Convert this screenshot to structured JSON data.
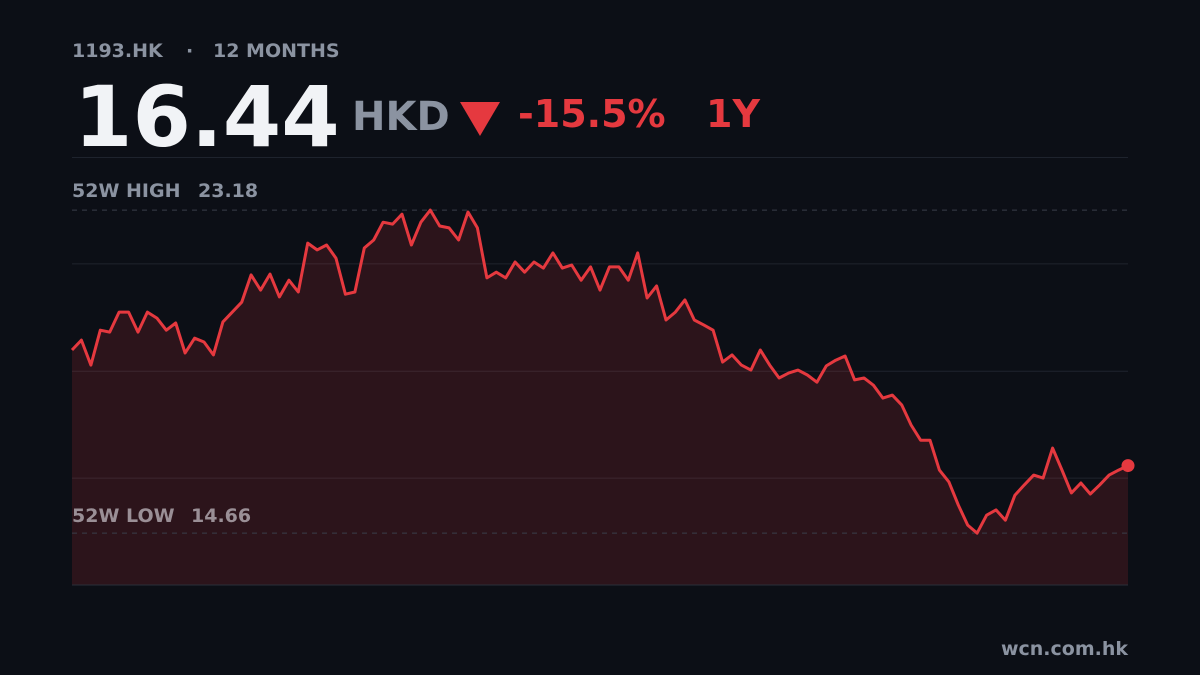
{
  "chart_data": {
    "type": "line",
    "ticker": "1193.HK",
    "period": "12 MONTHS",
    "price": 16.44,
    "currency": "HKD",
    "change": {
      "value": -15.5,
      "label": "-15.5%"
    },
    "range": "1Y",
    "high": {
      "label": "52W HIGH",
      "value": 23.18
    },
    "low": {
      "label": "52W LOW",
      "value": 14.66
    },
    "source": "wcn.com.hk",
    "color": "#e5393f",
    "ylim": [
      13.29,
      24.58
    ],
    "yticks": [
      16.11,
      18.93,
      21.76
    ],
    "grid": true,
    "values": [
      19.49,
      19.75,
      19.09,
      20.01,
      19.96,
      20.49,
      20.49,
      19.96,
      20.49,
      20.33,
      20.01,
      20.2,
      19.41,
      19.8,
      19.7,
      19.36,
      20.23,
      20.49,
      20.75,
      21.47,
      21.07,
      21.49,
      20.89,
      21.33,
      21.02,
      22.31,
      22.13,
      22.26,
      21.91,
      20.96,
      21.02,
      22.18,
      22.39,
      22.86,
      22.81,
      23.07,
      22.26,
      22.86,
      23.18,
      22.76,
      22.71,
      22.39,
      23.13,
      22.71,
      21.39,
      21.54,
      21.39,
      21.81,
      21.54,
      21.81,
      21.65,
      22.05,
      21.65,
      21.73,
      21.33,
      21.68,
      21.07,
      21.68,
      21.68,
      21.33,
      22.05,
      20.86,
      21.18,
      20.28,
      20.49,
      20.81,
      20.28,
      20.15,
      20.01,
      19.17,
      19.36,
      19.09,
      18.96,
      19.49,
      19.09,
      18.75,
      18.88,
      18.96,
      18.83,
      18.64,
      19.07,
      19.22,
      19.33,
      18.7,
      18.75,
      18.56,
      18.22,
      18.3,
      18.04,
      17.51,
      17.11,
      17.11,
      16.32,
      16.01,
      15.4,
      14.87,
      14.66,
      15.13,
      15.27,
      15.0,
      15.66,
      15.93,
      16.19,
      16.11,
      16.9,
      16.32,
      15.72,
      15.98,
      15.69,
      15.93,
      16.19,
      16.32,
      16.44
    ]
  }
}
